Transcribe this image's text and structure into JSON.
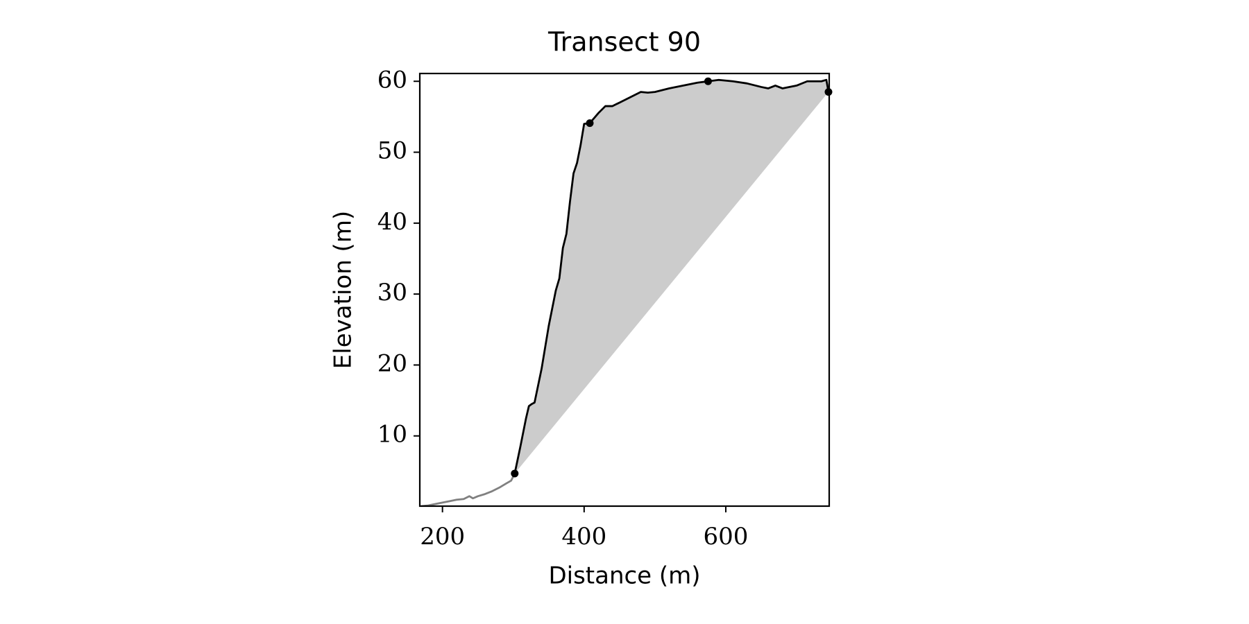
{
  "chart_data": {
    "type": "line",
    "title": "Transect 90",
    "x_label": "Distance (m)",
    "y_label": "Elevation (m)",
    "x": [
      170,
      180,
      200,
      210,
      220,
      230,
      238,
      243,
      250,
      260,
      270,
      280,
      290,
      297,
      302,
      310,
      318,
      322,
      326,
      330,
      340,
      350,
      360,
      365,
      370,
      375,
      380,
      385,
      390,
      395,
      400,
      408,
      420,
      430,
      440,
      450,
      460,
      470,
      480,
      490,
      500,
      520,
      540,
      560,
      575,
      590,
      610,
      630,
      650,
      660,
      670,
      680,
      700,
      715,
      735,
      742,
      745
    ],
    "series": [
      {
        "color": "#808080",
        "values": [
          0.1,
          0.2,
          0.6,
          0.8,
          1.0,
          1.1,
          1.5,
          1.2,
          1.5,
          1.8,
          2.2,
          2.7,
          3.3,
          3.7,
          4.7,
          null,
          null,
          null,
          null,
          null,
          null,
          null,
          null,
          null,
          null,
          null,
          null,
          null,
          null,
          null,
          null,
          null,
          null,
          null,
          null,
          null,
          null,
          null,
          null,
          null,
          null,
          null,
          null,
          null,
          null,
          null,
          null,
          null,
          null,
          null,
          null,
          null,
          null,
          null,
          null,
          null,
          null
        ]
      },
      {
        "color": "#000000",
        "fill": "#cccccc",
        "values": [
          null,
          null,
          null,
          null,
          null,
          null,
          null,
          null,
          null,
          null,
          null,
          null,
          null,
          null,
          4.7,
          8.5,
          12.5,
          14.2,
          14.5,
          14.7,
          19.5,
          25.5,
          30.5,
          32.2,
          36.5,
          38.5,
          43,
          47,
          48.5,
          51,
          54,
          54.1,
          55.5,
          56.5,
          56.5,
          57,
          57.5,
          58,
          58.5,
          58.4,
          58.5,
          59.0,
          59.4,
          59.8,
          60.0,
          60.2,
          60.0,
          59.7,
          59.2,
          59.0,
          59.4,
          59.0,
          59.4,
          60.0,
          60.0,
          60.2,
          58.5
        ]
      }
    ],
    "points": {
      "color": "#000000",
      "x": [
        302,
        408,
        575,
        745
      ],
      "y": [
        4.7,
        54.1,
        60.0,
        58.5
      ]
    },
    "xlim": [
      168,
      746
    ],
    "ylim": [
      0.1,
      61.1
    ],
    "xticks": [
      200,
      400,
      600
    ],
    "yticks": [
      10,
      20,
      30,
      40,
      50,
      60
    ]
  }
}
